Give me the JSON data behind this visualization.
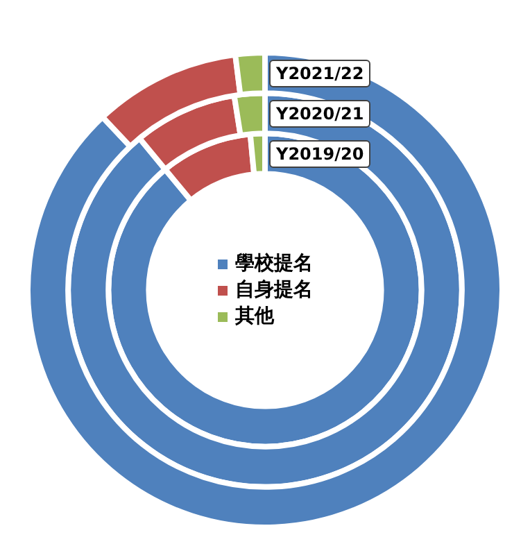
{
  "chart_data": {
    "type": "donut",
    "categories": [
      "學校提名",
      "自身提名",
      "其他"
    ],
    "colors": [
      "#4f81bd",
      "#c0504d",
      "#9bbb59"
    ],
    "series": [
      {
        "name": "Y2019/20",
        "values": [
          89,
          9.5,
          1.5
        ]
      },
      {
        "name": "Y2020/21",
        "values": [
          89,
          8.5,
          2.5
        ]
      },
      {
        "name": "Y2021/22",
        "values": [
          88,
          10,
          2
        ]
      }
    ],
    "legend": "center"
  }
}
